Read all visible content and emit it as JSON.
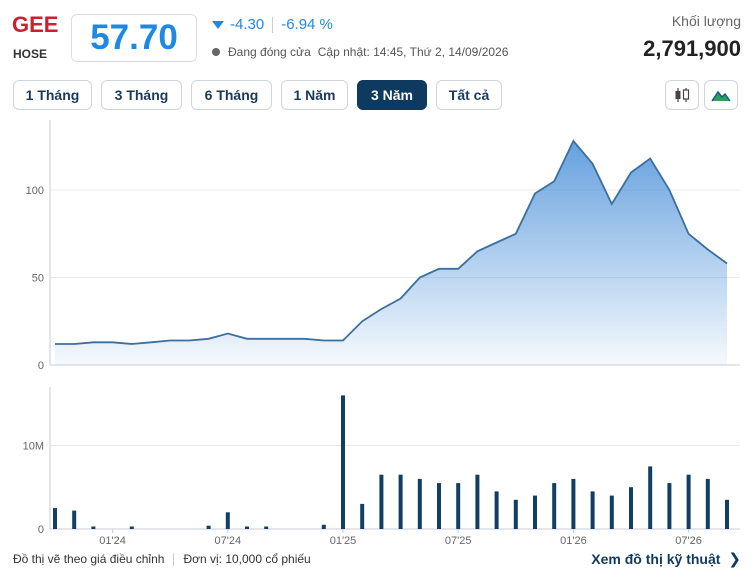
{
  "header": {
    "ticker": "GEE",
    "exchange": "HOSE",
    "price": "57.70",
    "change": "-4.30",
    "change_pct": "-6.94 %",
    "status": "Đang đóng cửa",
    "updated": "Cập nhật: 14:45, Thứ 2, 14/09/2026",
    "volume_label": "Khối lượng",
    "volume_value": "2,791,900",
    "accent_color": "#1e88e5",
    "ticker_color": "#c8232c"
  },
  "tabs": [
    {
      "label": "1 Tháng",
      "active": false
    },
    {
      "label": "3 Tháng",
      "active": false
    },
    {
      "label": "6 Tháng",
      "active": false
    },
    {
      "label": "1 Năm",
      "active": false
    },
    {
      "label": "3 Năm",
      "active": true
    },
    {
      "label": "Tất cả",
      "active": false
    }
  ],
  "toolbar": {
    "candlestick_icon": "candlestick-icon",
    "area_icon": "mountain-icon"
  },
  "chart_data": [
    {
      "type": "area",
      "title": "",
      "xlabel": "",
      "ylabel": "",
      "ylim": [
        0,
        140
      ],
      "yticks": [
        0,
        50,
        100
      ],
      "xticks": [
        "01'24",
        "07'24",
        "01'25",
        "07'25",
        "01'26",
        "07'26"
      ],
      "grid": true,
      "series": [
        {
          "name": "",
          "x": [
            "10'23",
            "11'23",
            "12'23",
            "01'24",
            "02'24",
            "03'24",
            "04'24",
            "05'24",
            "06'24",
            "07'24",
            "08'24",
            "09'24",
            "10'24",
            "11'24",
            "12'24",
            "01'25",
            "02'25",
            "03'25",
            "04'25",
            "05'25",
            "06'25",
            "07'25",
            "08'25",
            "09'25",
            "10'25",
            "11'25",
            "12'25",
            "01'26",
            "02'26",
            "03'26",
            "04'26",
            "05'26",
            "06'26",
            "07'26",
            "08'26",
            "09'26"
          ],
          "values": [
            12,
            12,
            13,
            13,
            12,
            13,
            14,
            14,
            15,
            18,
            15,
            15,
            15,
            15,
            14,
            14,
            25,
            32,
            38,
            50,
            55,
            55,
            65,
            70,
            75,
            98,
            105,
            128,
            115,
            92,
            110,
            118,
            100,
            75,
            66,
            58
          ]
        }
      ]
    },
    {
      "type": "bar",
      "title": "",
      "xlabel": "",
      "ylabel": "",
      "ylim": [
        0,
        17
      ],
      "yticks_labels": [
        "0",
        "10M"
      ],
      "yticks": [
        0,
        10
      ],
      "xticks": [
        "01'24",
        "07'24",
        "01'25",
        "07'25",
        "01'26",
        "07'26"
      ],
      "series": [
        {
          "name": "",
          "x": [
            "10'23",
            "11'23",
            "12'23",
            "01'24",
            "02'24",
            "03'24",
            "04'24",
            "05'24",
            "06'24",
            "07'24",
            "08'24",
            "09'24",
            "10'24",
            "11'24",
            "12'24",
            "01'25",
            "02'25",
            "03'25",
            "04'25",
            "05'25",
            "06'25",
            "07'25",
            "08'25",
            "09'25",
            "10'25",
            "11'25",
            "12'25",
            "01'26",
            "02'26",
            "03'26",
            "04'26",
            "05'26",
            "06'26",
            "07'26",
            "08'26",
            "09'26"
          ],
          "values": [
            2.5,
            2.2,
            0.3,
            0,
            0.3,
            0,
            0,
            0,
            0.4,
            2.0,
            0.3,
            0.3,
            0,
            0,
            0.5,
            16.0,
            3.0,
            6.5,
            6.5,
            6.0,
            5.5,
            5.5,
            6.5,
            4.5,
            3.5,
            4.0,
            5.5,
            6.0,
            4.5,
            4.0,
            5.0,
            7.5,
            5.5,
            6.5,
            6.0,
            3.5
          ]
        }
      ]
    }
  ],
  "footer": {
    "note": "Đồ thị vẽ theo giá điều chỉnh",
    "unit": "Đơn vị: 10,000 cổ phiếu",
    "link": "Xem đồ thị kỹ thuật"
  }
}
